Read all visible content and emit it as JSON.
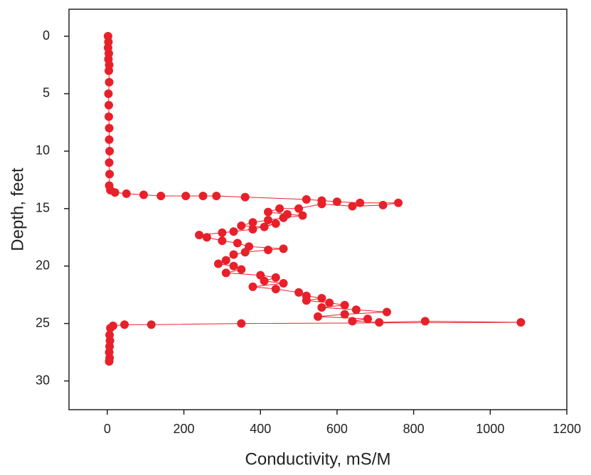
{
  "chart_data": {
    "type": "scatter",
    "connected": true,
    "x_label": "Conductivity, mS/M",
    "y_label": "Depth, feet",
    "xlim": [
      -100,
      1200
    ],
    "xticks": [
      0,
      200,
      400,
      600,
      800,
      1000,
      1200
    ],
    "ylim": [
      32.5,
      -2.35
    ],
    "yticks": [
      0,
      5,
      10,
      15,
      20,
      25,
      30
    ],
    "series": [
      {
        "color": "#e8202a",
        "x": [
          2,
          3,
          2,
          4,
          3,
          5,
          4,
          5,
          3,
          4,
          4,
          5,
          5,
          6,
          5,
          6,
          5,
          8,
          20,
          50,
          95,
          140,
          205,
          250,
          285,
          360,
          520,
          560,
          600,
          660,
          760,
          720,
          640,
          560,
          500,
          450,
          420,
          470,
          510,
          460,
          420,
          380,
          350,
          410,
          440,
          380,
          330,
          300,
          240,
          260,
          300,
          340,
          370,
          460,
          420,
          360,
          330,
          310,
          290,
          330,
          350,
          310,
          400,
          440,
          410,
          460,
          380,
          440,
          500,
          520,
          560,
          520,
          580,
          620,
          560,
          650,
          730,
          620,
          550,
          680,
          640,
          710,
          830,
          1080,
          350,
          115,
          45,
          15,
          8,
          6,
          7,
          6,
          5,
          6,
          5
        ],
        "values": [
          0,
          0.5,
          1,
          1.5,
          2,
          2.5,
          3,
          4,
          5,
          6,
          7,
          8,
          9,
          10,
          11,
          12,
          13,
          13.4,
          13.6,
          13.7,
          13.8,
          13.9,
          13.9,
          13.9,
          13.9,
          14,
          14.2,
          14.3,
          14.4,
          14.5,
          14.5,
          14.7,
          14.8,
          14.6,
          15,
          15,
          15.3,
          15.5,
          15.6,
          15.8,
          16,
          16.2,
          16.5,
          16.6,
          16.3,
          16.8,
          17,
          17.1,
          17.3,
          17.5,
          17.8,
          18,
          18.3,
          18.5,
          18.6,
          18.8,
          19,
          19.5,
          19.8,
          20,
          20.3,
          20.6,
          20.8,
          21,
          21.3,
          21.5,
          21.8,
          22,
          22.3,
          22.6,
          22.8,
          23,
          23.2,
          23.4,
          23.6,
          23.8,
          24,
          24.2,
          24.4,
          24.6,
          24.8,
          24.9,
          24.8,
          24.9,
          25,
          25.1,
          25.1,
          25.2,
          25.4,
          26,
          26.5,
          27,
          27.5,
          28,
          28.3
        ]
      }
    ]
  }
}
